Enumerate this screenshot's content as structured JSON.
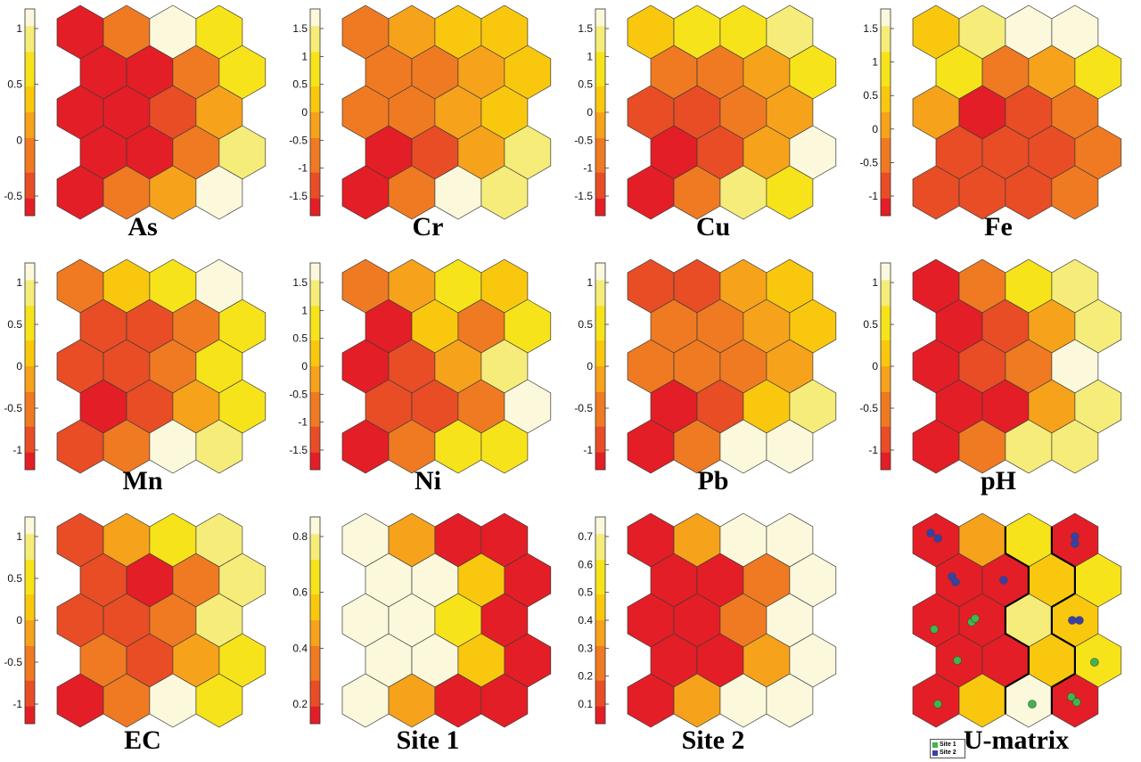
{
  "colors": {
    "palette": [
      "#e41e26",
      "#e84d26",
      "#ef7a22",
      "#f6a21b",
      "#f9c80e",
      "#f7e31a",
      "#f5ec7a",
      "#fbf8dc"
    ],
    "site1_dot": "#3fb54a",
    "site2_dot": "#3a3fa6",
    "border": "#3a3a3a"
  },
  "legend": {
    "site1": "Site 1",
    "site2": "Site 2"
  },
  "chart_data": [
    {
      "type": "heatmap",
      "title": "As",
      "ticks": [
        "1",
        "0.5",
        "0",
        "-0.5"
      ],
      "grid": [
        [
          0,
          2,
          7,
          5
        ],
        [
          0,
          0,
          2,
          5
        ],
        [
          0,
          0,
          1,
          3
        ],
        [
          0,
          0,
          2,
          6
        ],
        [
          0,
          2,
          3,
          7
        ]
      ]
    },
    {
      "type": "heatmap",
      "title": "Cr",
      "ticks": [
        "1.5",
        "1",
        "0.5",
        "0",
        "-0.5",
        "-1",
        "-1.5"
      ],
      "grid": [
        [
          2,
          3,
          4,
          4
        ],
        [
          2,
          2,
          3,
          4
        ],
        [
          2,
          2,
          3,
          4
        ],
        [
          0,
          1,
          3,
          6
        ],
        [
          0,
          2,
          7,
          6
        ]
      ]
    },
    {
      "type": "heatmap",
      "title": "Cu",
      "ticks": [
        "1.5",
        "1",
        "0.5",
        "0",
        "-0.5",
        "-1",
        "-1.5"
      ],
      "grid": [
        [
          4,
          5,
          5,
          6
        ],
        [
          2,
          2,
          3,
          5
        ],
        [
          1,
          1,
          2,
          3
        ],
        [
          0,
          1,
          3,
          7
        ],
        [
          0,
          2,
          6,
          5
        ]
      ]
    },
    {
      "type": "heatmap",
      "title": "Fe",
      "ticks": [
        "1.5",
        "1",
        "0.5",
        "0",
        "-0.5",
        "-1"
      ],
      "grid": [
        [
          4,
          6,
          7,
          7
        ],
        [
          5,
          2,
          3,
          5
        ],
        [
          3,
          0,
          1,
          2
        ],
        [
          1,
          1,
          1,
          2
        ],
        [
          1,
          1,
          1,
          2
        ]
      ]
    },
    {
      "type": "heatmap",
      "title": "Mn",
      "ticks": [
        "1",
        "0.5",
        "0",
        "-0.5",
        "-1"
      ],
      "grid": [
        [
          2,
          4,
          5,
          7
        ],
        [
          1,
          1,
          2,
          5
        ],
        [
          1,
          1,
          2,
          5
        ],
        [
          0,
          1,
          3,
          5
        ],
        [
          1,
          2,
          7,
          6
        ]
      ]
    },
    {
      "type": "heatmap",
      "title": "Ni",
      "ticks": [
        "1.5",
        "1",
        "0.5",
        "0",
        "-0.5",
        "-1",
        "-1.5"
      ],
      "grid": [
        [
          2,
          3,
          5,
          4
        ],
        [
          0,
          4,
          2,
          5
        ],
        [
          0,
          1,
          3,
          6
        ],
        [
          1,
          1,
          2,
          7
        ],
        [
          0,
          2,
          5,
          5
        ]
      ]
    },
    {
      "type": "heatmap",
      "title": "Pb",
      "ticks": [
        "1",
        "0.5",
        "0",
        "-0.5",
        "-1"
      ],
      "grid": [
        [
          1,
          1,
          3,
          4
        ],
        [
          2,
          2,
          3,
          4
        ],
        [
          2,
          2,
          2,
          3
        ],
        [
          0,
          1,
          4,
          6
        ],
        [
          0,
          2,
          7,
          7
        ]
      ]
    },
    {
      "type": "heatmap",
      "title": "pH",
      "ticks": [
        "1",
        "0.5",
        "0",
        "-0.5",
        "-1"
      ],
      "grid": [
        [
          0,
          2,
          5,
          6
        ],
        [
          0,
          1,
          3,
          6
        ],
        [
          0,
          1,
          2,
          7
        ],
        [
          0,
          0,
          3,
          6
        ],
        [
          0,
          2,
          6,
          6
        ]
      ]
    },
    {
      "type": "heatmap",
      "title": "EC",
      "ticks": [
        "1",
        "0.5",
        "0",
        "-0.5",
        "-1"
      ],
      "grid": [
        [
          1,
          3,
          5,
          6
        ],
        [
          1,
          0,
          2,
          6
        ],
        [
          1,
          1,
          2,
          6
        ],
        [
          2,
          1,
          3,
          5
        ],
        [
          0,
          2,
          7,
          5
        ]
      ]
    },
    {
      "type": "heatmap",
      "title": "Site 1",
      "ticks": [
        "0.8",
        "0.6",
        "0.4",
        "0.2"
      ],
      "grid": [
        [
          7,
          3,
          0,
          0
        ],
        [
          7,
          7,
          4,
          0
        ],
        [
          7,
          7,
          5,
          0
        ],
        [
          7,
          7,
          4,
          0
        ],
        [
          7,
          3,
          0,
          0
        ]
      ]
    },
    {
      "type": "heatmap",
      "title": "Site 2",
      "ticks": [
        "0.7",
        "0.6",
        "0.5",
        "0.4",
        "0.3",
        "0.2",
        "0.1"
      ],
      "grid": [
        [
          0,
          3,
          7,
          7
        ],
        [
          0,
          0,
          2,
          7
        ],
        [
          0,
          0,
          2,
          7
        ],
        [
          0,
          0,
          3,
          7
        ],
        [
          0,
          3,
          7,
          7
        ]
      ]
    },
    {
      "type": "heatmap",
      "title": "U-matrix",
      "ticks": [],
      "grid": [
        [
          0,
          3,
          5,
          0
        ],
        [
          0,
          0,
          4,
          5
        ],
        [
          0,
          0,
          6,
          4
        ],
        [
          0,
          0,
          4,
          5
        ],
        [
          0,
          4,
          7,
          0
        ]
      ]
    }
  ]
}
